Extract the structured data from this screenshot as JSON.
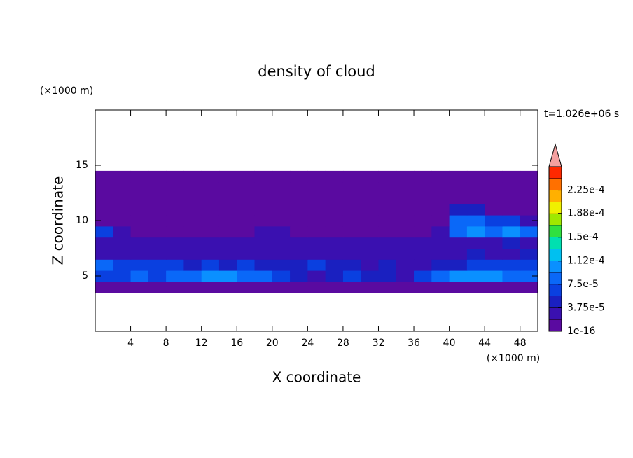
{
  "chart_data": {
    "type": "contour",
    "title": "density of cloud",
    "xlabel": "X coordinate",
    "ylabel": "Z coordinate",
    "x_unit": "(×1000 m)",
    "y_unit": "(×1000 m)",
    "time_label": "t=1.026e+06 s",
    "xlim": [
      0,
      50
    ],
    "ylim": [
      0,
      20
    ],
    "xticks": [
      4,
      8,
      12,
      16,
      20,
      24,
      28,
      32,
      36,
      40,
      44,
      48
    ],
    "yticks": [
      5,
      10,
      15
    ],
    "x": [
      1,
      3,
      5,
      7,
      9,
      11,
      13,
      15,
      17,
      19,
      21,
      23,
      25,
      27,
      29,
      31,
      33,
      35,
      37,
      39,
      41,
      43,
      45,
      47,
      49
    ],
    "y": [
      4,
      5,
      6,
      7,
      8,
      9,
      10,
      11,
      12,
      13,
      14
    ],
    "z": [
      [
        1e-06,
        1e-06,
        1e-06,
        1e-06,
        1e-06,
        1e-06,
        1e-06,
        1e-06,
        1e-06,
        1e-06,
        1e-06,
        1e-06,
        1e-06,
        1e-06,
        1e-06,
        1e-06,
        1e-06,
        1e-06,
        1e-06,
        1e-06,
        1e-06,
        1e-06,
        1e-06,
        1e-06,
        1e-06
      ],
      [
        6e-05,
        7e-05,
        8e-05,
        6e-05,
        9e-05,
        8e-05,
        0.00011,
        0.0001,
        9e-05,
        8e-05,
        7e-05,
        4e-05,
        3e-05,
        5e-05,
        6e-05,
        5e-05,
        4e-05,
        3e-05,
        6e-05,
        8e-05,
        0.0001,
        0.00011,
        0.0001,
        9e-05,
        8e-05
      ],
      [
        8e-05,
        7e-05,
        6e-05,
        7e-05,
        6e-05,
        5e-05,
        6e-05,
        5e-05,
        6e-05,
        4e-05,
        5e-05,
        5e-05,
        6e-05,
        5e-05,
        4e-05,
        3e-05,
        4e-05,
        3e-05,
        3e-05,
        4e-05,
        5e-05,
        6e-05,
        7e-05,
        6e-05,
        7e-05
      ],
      [
        3e-05,
        2.5e-05,
        3e-05,
        2e-05,
        2.5e-05,
        2e-05,
        3e-05,
        2e-05,
        2e-05,
        2e-05,
        2e-05,
        2e-05,
        2.5e-05,
        3e-05,
        2e-05,
        2e-05,
        2e-05,
        2e-05,
        2e-05,
        3e-05,
        3e-05,
        4e-05,
        3e-05,
        3e-05,
        4e-05
      ],
      [
        2e-05,
        2e-05,
        2e-05,
        2e-05,
        2e-05,
        2e-05,
        2e-05,
        2e-05,
        2e-05,
        2e-05,
        2e-05,
        2e-05,
        2e-05,
        2e-05,
        2e-05,
        2e-05,
        2e-05,
        2e-05,
        2e-05,
        2e-05,
        3e-05,
        3e-05,
        3e-05,
        4e-05,
        3e-05
      ],
      [
        6e-05,
        2e-05,
        1e-06,
        1e-06,
        1e-06,
        1e-06,
        1e-06,
        1e-06,
        1e-06,
        2e-05,
        2e-05,
        1e-06,
        1e-06,
        1e-06,
        1e-06,
        1e-06,
        1e-06,
        1e-06,
        1e-06,
        2e-05,
        9e-05,
        0.0001,
        9e-05,
        0.0001,
        8e-05
      ],
      [
        1e-06,
        1e-06,
        1e-06,
        1e-06,
        1e-06,
        1e-06,
        1e-06,
        1e-06,
        1e-06,
        1e-06,
        1e-06,
        1e-06,
        1e-06,
        1e-06,
        1e-06,
        1e-06,
        1e-06,
        1e-06,
        1e-06,
        1e-06,
        8e-05,
        9e-05,
        7e-05,
        6e-05,
        3e-05
      ],
      [
        1e-06,
        1e-06,
        1e-06,
        1e-06,
        1e-06,
        1e-06,
        1e-06,
        1e-06,
        1e-06,
        1e-06,
        1e-06,
        1e-06,
        1e-06,
        1e-06,
        1e-06,
        1e-06,
        1e-06,
        1e-06,
        1e-06,
        1e-06,
        5e-05,
        4e-05,
        1e-06,
        1e-06,
        1e-06
      ],
      [
        1e-06,
        1e-06,
        1e-06,
        1e-06,
        1e-06,
        1e-06,
        1e-06,
        1e-06,
        1e-06,
        1e-06,
        1e-06,
        1e-06,
        1e-06,
        1e-06,
        1e-06,
        1e-06,
        1e-06,
        1e-06,
        1e-06,
        1e-06,
        1e-06,
        1e-06,
        1e-06,
        1e-06,
        1e-06
      ],
      [
        1e-06,
        1e-06,
        1e-06,
        1e-06,
        1e-06,
        1e-06,
        1e-06,
        1e-06,
        1e-06,
        1e-06,
        1e-06,
        1e-06,
        1e-06,
        1e-06,
        1e-06,
        1e-06,
        1e-06,
        1e-06,
        1e-06,
        1e-06,
        1e-06,
        1e-06,
        1e-06,
        1e-06,
        1e-06
      ],
      [
        1e-06,
        1e-06,
        1e-06,
        1e-06,
        1e-06,
        1e-06,
        1e-06,
        1e-06,
        1e-06,
        1e-06,
        1e-06,
        1e-06,
        1e-06,
        1e-06,
        1e-06,
        1e-06,
        1e-06,
        1e-06,
        1e-06,
        1e-06,
        1e-06,
        1e-06,
        1e-06,
        1e-06,
        1e-06
      ]
    ],
    "colorbar": {
      "clim": [
        1e-16,
        0.0002625
      ],
      "levels": [
        1e-16,
        1.875e-05,
        3.75e-05,
        5.625e-05,
        7.5e-05,
        9.375e-05,
        0.0001125,
        0.00013125,
        0.00015,
        0.00016875,
        0.0001875,
        0.00020625,
        0.000225,
        0.00024375
      ],
      "colors": [
        "#5a0aa0",
        "#3a10b0",
        "#1a20c0",
        "#0a40e0",
        "#0a68f8",
        "#0a90ff",
        "#00c0f0",
        "#00e0b0",
        "#30e040",
        "#a0e800",
        "#f0f000",
        "#ffb000",
        "#ff7000",
        "#ff2800"
      ],
      "extend_color": "#f4a0a0",
      "ticks": [
        1e-16,
        {
          "value": 3.75e-05,
          "label": "3.75e-5"
        },
        {
          "value": 7.5e-05,
          "label": "7.5e-5"
        },
        {
          "value": 0.000112,
          "label": "1.12e-4"
        },
        {
          "value": 0.00015,
          "label": "1.5e-4"
        },
        {
          "value": 0.000188,
          "label": "1.88e-4"
        },
        {
          "value": 0.000225,
          "label": "2.25e-4"
        }
      ]
    }
  }
}
